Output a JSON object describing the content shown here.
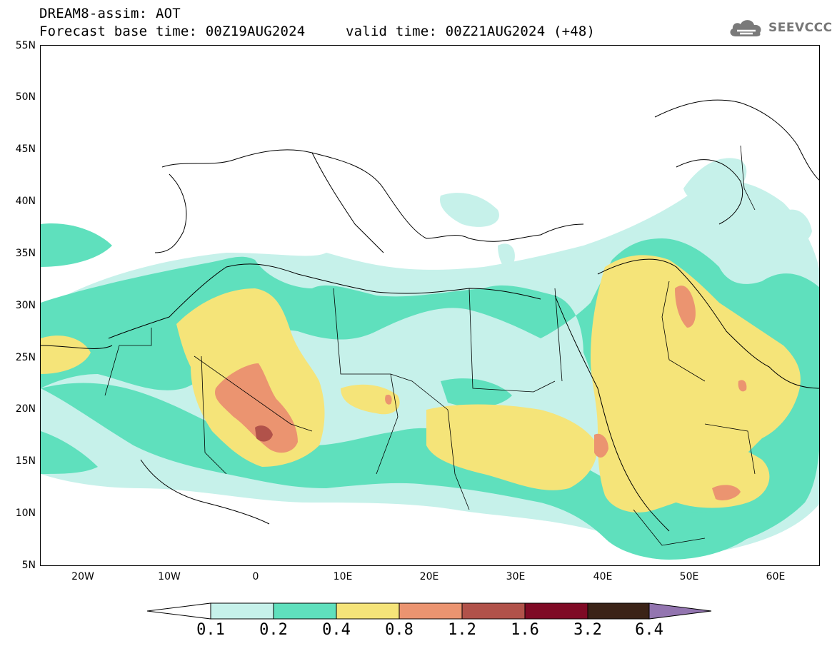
{
  "title": {
    "line1": "DREAM8-assim: AOT",
    "line2": "Forecast base time: 00Z19AUG2024",
    "line2b": "valid time: 00Z21AUG2024 (+48)"
  },
  "logo": {
    "text": "SEEVCCC",
    "icon": "cloud-icon"
  },
  "map": {
    "lat_labels": [
      "55N",
      "50N",
      "45N",
      "40N",
      "35N",
      "30N",
      "25N",
      "20N",
      "15N",
      "10N",
      "5N"
    ],
    "lon_labels": [
      "20W",
      "10W",
      "0",
      "10E",
      "20E",
      "30E",
      "40E",
      "50E",
      "60E"
    ],
    "extent": {
      "lon_min": -25,
      "lon_max": 65,
      "lat_min": 5,
      "lat_max": 55
    }
  },
  "colorbar": {
    "labels": [
      "0.1",
      "0.2",
      "0.4",
      "0.8",
      "1.2",
      "1.6",
      "3.2",
      "6.4"
    ],
    "colors": [
      "#c6f1ea",
      "#5fe0bd",
      "#f5e479",
      "#eb9470",
      "#b1524a",
      "#7f0a25",
      "#3b2317",
      "#9375b0"
    ]
  },
  "colors": {
    "c1": "#c6f1ea",
    "c2": "#5fe0bd",
    "c3": "#f5e479",
    "c4": "#eb9470",
    "c5": "#b1524a"
  }
}
